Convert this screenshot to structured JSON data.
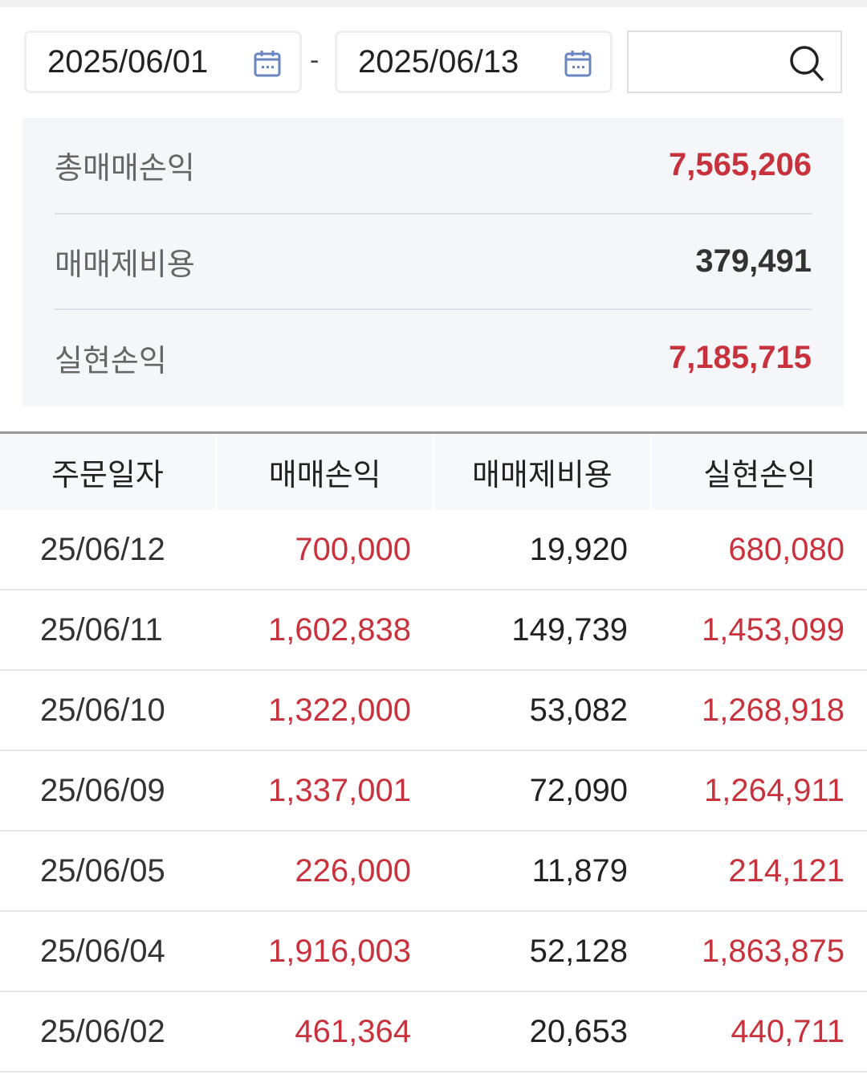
{
  "filter": {
    "start_date": "2025/06/01",
    "end_date": "2025/06/13",
    "separator": "-",
    "search_value": ""
  },
  "summary": [
    {
      "label": "총매매손익",
      "value": "7,565,206",
      "positive": true
    },
    {
      "label": "매매제비용",
      "value": "379,491",
      "positive": false
    },
    {
      "label": "실현손익",
      "value": "7,185,715",
      "positive": true
    }
  ],
  "table": {
    "headers": [
      "주문일자",
      "매매손익",
      "매매제비용",
      "실현손익"
    ],
    "rows": [
      [
        "25/06/12",
        "700,000",
        "19,920",
        "680,080"
      ],
      [
        "25/06/11",
        "1,602,838",
        "149,739",
        "1,453,099"
      ],
      [
        "25/06/10",
        "1,322,000",
        "53,082",
        "1,268,918"
      ],
      [
        "25/06/09",
        "1,337,001",
        "72,090",
        "1,264,911"
      ],
      [
        "25/06/05",
        "226,000",
        "11,879",
        "214,121"
      ],
      [
        "25/06/04",
        "1,916,003",
        "52,128",
        "1,863,875"
      ],
      [
        "25/06/02",
        "461,364",
        "20,653",
        "440,711"
      ]
    ]
  },
  "colors": {
    "profit": "#c8323c",
    "calendar_icon": "#6a86c0"
  }
}
